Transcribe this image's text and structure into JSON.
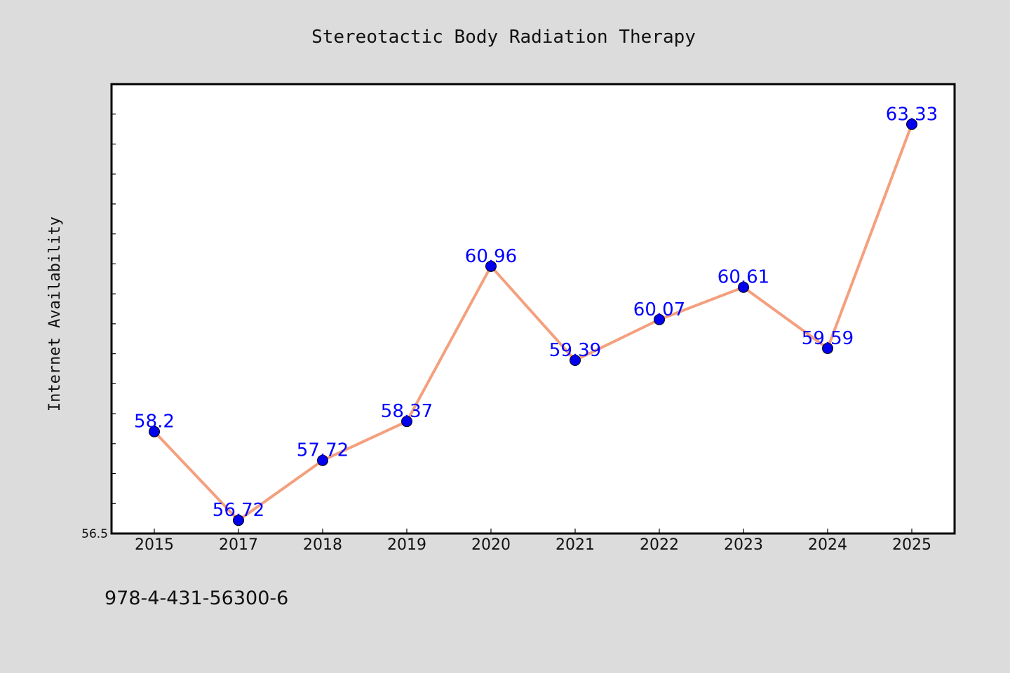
{
  "chart_data": {
    "type": "line",
    "title": "Stereotactic Body Radiation Therapy",
    "xlabel": "",
    "ylabel": "Internet Availability",
    "categories": [
      "2015",
      "2017",
      "2018",
      "2019",
      "2020",
      "2021",
      "2022",
      "2023",
      "2024",
      "2025"
    ],
    "series": [
      {
        "values": [
          58.2,
          56.72,
          57.72,
          58.37,
          60.96,
          59.39,
          60.07,
          60.61,
          59.59,
          63.33
        ],
        "data_labels": [
          "58.2",
          "56.72",
          "57.72",
          "58.37",
          "60.96",
          "59.39",
          "60.07",
          "60.61",
          "59.59",
          "63.33"
        ],
        "line_color": "#f4a07e",
        "marker_color": "#0000ee"
      }
    ],
    "ylim": [
      56.5,
      64.0
    ],
    "y_tick_labels": [
      "56.5"
    ],
    "grid": false,
    "legend": "none"
  },
  "footer": {
    "code": "978-4-431-56300-6"
  },
  "colors": {
    "background": "#dcdcdc",
    "plot_area": "#ffffff",
    "label_text": "#0000ff"
  }
}
